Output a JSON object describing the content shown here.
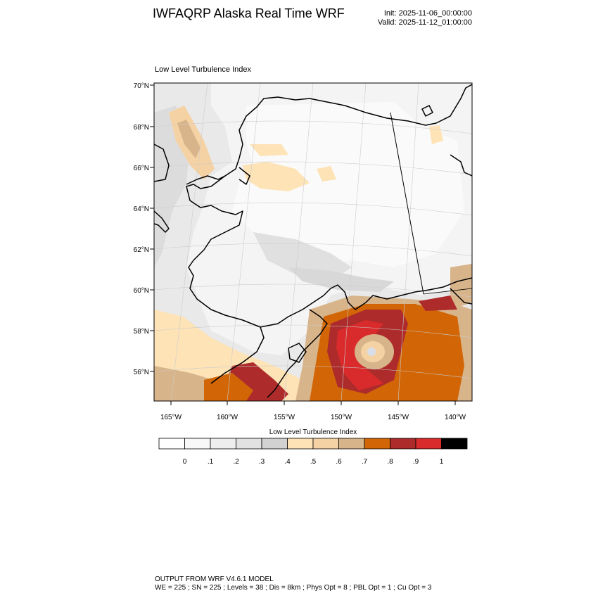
{
  "header": {
    "title": "IWFAQRP Alaska Real Time WRF",
    "init": "Init: 2025-11-06_00:00:00",
    "valid": "Valid: 2025-11-12_01:00:00"
  },
  "map": {
    "title": "Low Level Turbulence Index",
    "lat_labels": [
      "70°N",
      "68°N",
      "66°N",
      "64°N",
      "62°N",
      "60°N",
      "58°N",
      "56°N"
    ],
    "lon_labels": [
      "165°W",
      "160°W",
      "155°W",
      "150°W",
      "145°W",
      "140°W"
    ]
  },
  "colorbar": {
    "title": "Low Level Turbulence Index",
    "labels": [
      "0",
      ".1",
      ".2",
      ".3",
      ".4",
      ".5",
      ".6",
      ".7",
      ".8",
      ".9",
      "1"
    ],
    "colors": [
      "#ffffff",
      "#f8f8f8",
      "#eeeeee",
      "#e2e2e2",
      "#d2d2d2",
      "#fde3b6",
      "#f5d2a4",
      "#d8b48a",
      "#d26606",
      "#ae2b2b",
      "#d92b2b",
      "#000000"
    ]
  },
  "footer": {
    "line1": "OUTPUT FROM WRF V4.6.1 MODEL",
    "line2": "WE = 225 ; SN = 225 ; Levels = 38 ; Dis = 8km ; Phys Opt = 8 ; PBL Opt = 1 ; Cu Opt = 3"
  }
}
